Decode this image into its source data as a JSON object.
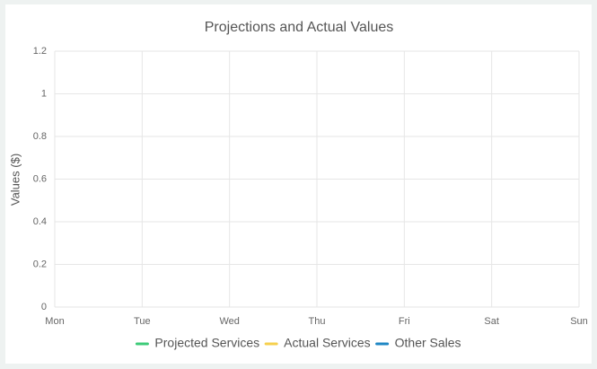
{
  "chart_data": {
    "type": "line",
    "title": "Projections and Actual Values",
    "y_label": "Values ($)",
    "categories": [
      "Mon",
      "Tue",
      "Wed",
      "Thu",
      "Fri",
      "Sat",
      "Sun"
    ],
    "series": [
      {
        "name": "Projected Services",
        "color": "#3dcb78",
        "values": [
          null,
          null,
          null,
          null,
          null,
          null,
          null
        ]
      },
      {
        "name": "Actual Services",
        "color": "#f6d04d",
        "values": [
          null,
          null,
          null,
          null,
          null,
          null,
          null
        ]
      },
      {
        "name": "Other Sales",
        "color": "#1f87c4",
        "values": [
          null,
          null,
          null,
          null,
          null,
          null,
          null
        ]
      }
    ],
    "ylim": [
      0,
      1.2
    ],
    "yticks": [
      0,
      0.2,
      0.4,
      0.6,
      0.8,
      1,
      1.2
    ],
    "grid": true,
    "legend": "bottom"
  }
}
